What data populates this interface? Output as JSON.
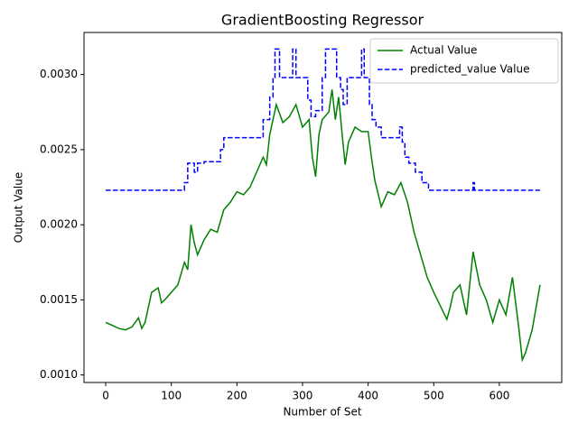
{
  "chart_data": {
    "type": "line",
    "title": "GradientBoosting Regressor",
    "x_label": "Number of Set",
    "y_label": "Output Value",
    "xlim": [
      -33.1,
      695.1
    ],
    "xticks": [
      0,
      100,
      200,
      300,
      400,
      500,
      600
    ],
    "ylim": [
      0.00095,
      0.00328
    ],
    "yticks": [
      {
        "value": 0.001,
        "label": "0.0010"
      },
      {
        "value": 0.0015,
        "label": "0.0015"
      },
      {
        "value": 0.002,
        "label": "0.0020"
      },
      {
        "value": 0.0025,
        "label": "0.0025"
      },
      {
        "value": 0.003,
        "label": "0.0030"
      }
    ],
    "grid": false,
    "legend": "upper right",
    "series": [
      {
        "name": "Actual Value",
        "color": "#008000",
        "dash": "solid",
        "x": [
          0,
          10,
          20,
          30,
          40,
          50,
          55,
          60,
          70,
          80,
          85,
          90,
          100,
          110,
          120,
          125,
          130,
          135,
          140,
          150,
          160,
          170,
          180,
          190,
          200,
          210,
          220,
          230,
          240,
          245,
          250,
          255,
          260,
          270,
          280,
          290,
          300,
          310,
          315,
          320,
          325,
          330,
          340,
          345,
          350,
          355,
          360,
          365,
          370,
          380,
          390,
          400,
          405,
          410,
          420,
          430,
          440,
          450,
          460,
          470,
          480,
          490,
          500,
          520,
          525,
          530,
          540,
          550,
          560,
          570,
          580,
          590,
          600,
          610,
          620,
          630,
          635,
          640,
          650,
          660,
          662
        ],
        "values": [
          0.00135,
          0.00133,
          0.00131,
          0.0013,
          0.00132,
          0.00138,
          0.00131,
          0.00135,
          0.00155,
          0.00158,
          0.00148,
          0.0015,
          0.00155,
          0.0016,
          0.00175,
          0.0017,
          0.002,
          0.00188,
          0.0018,
          0.0019,
          0.00197,
          0.00195,
          0.0021,
          0.00215,
          0.00222,
          0.0022,
          0.00225,
          0.00235,
          0.00245,
          0.0024,
          0.0026,
          0.0027,
          0.0028,
          0.00268,
          0.00272,
          0.0028,
          0.00265,
          0.0027,
          0.00245,
          0.00232,
          0.0026,
          0.0027,
          0.00275,
          0.0029,
          0.0027,
          0.00285,
          0.00262,
          0.0024,
          0.00255,
          0.00265,
          0.00262,
          0.00262,
          0.00245,
          0.0023,
          0.00212,
          0.00222,
          0.0022,
          0.00228,
          0.00215,
          0.00195,
          0.0018,
          0.00165,
          0.00155,
          0.00137,
          0.00145,
          0.00155,
          0.0016,
          0.0014,
          0.00182,
          0.0016,
          0.0015,
          0.00135,
          0.0015,
          0.0014,
          0.00165,
          0.0013,
          0.0011,
          0.00115,
          0.0013,
          0.00155,
          0.0016
        ]
      },
      {
        "name": "predicted_value Value",
        "color": "#0000ff",
        "dash": "dashed",
        "x": [
          0,
          120,
          120,
          125,
          125,
          135,
          135,
          140,
          140,
          150,
          150,
          175,
          175,
          180,
          180,
          240,
          240,
          250,
          250,
          255,
          255,
          258,
          258,
          265,
          265,
          285,
          285,
          290,
          290,
          308,
          308,
          313,
          313,
          320,
          320,
          330,
          330,
          335,
          335,
          352,
          352,
          358,
          358,
          362,
          362,
          368,
          368,
          390,
          390,
          394,
          394,
          402,
          402,
          406,
          406,
          412,
          412,
          420,
          420,
          448,
          448,
          452,
          452,
          456,
          456,
          462,
          462,
          472,
          472,
          482,
          482,
          492,
          492,
          560,
          560,
          562,
          562,
          662
        ],
        "values": [
          0.00223,
          0.00223,
          0.00228,
          0.00228,
          0.00241,
          0.00241,
          0.00235,
          0.00235,
          0.00241,
          0.00241,
          0.00242,
          0.00242,
          0.0025,
          0.0025,
          0.00258,
          0.00258,
          0.0027,
          0.0027,
          0.00285,
          0.00285,
          0.00298,
          0.00298,
          0.00317,
          0.00317,
          0.00298,
          0.00298,
          0.00317,
          0.00317,
          0.00298,
          0.00298,
          0.00283,
          0.00283,
          0.00272,
          0.00272,
          0.00276,
          0.00276,
          0.00298,
          0.00298,
          0.00317,
          0.00317,
          0.00298,
          0.00298,
          0.0029,
          0.0029,
          0.0028,
          0.0028,
          0.00298,
          0.00298,
          0.00317,
          0.00317,
          0.00298,
          0.00298,
          0.0028,
          0.0028,
          0.0027,
          0.0027,
          0.00265,
          0.00265,
          0.00258,
          0.00258,
          0.00265,
          0.00265,
          0.00255,
          0.00255,
          0.00245,
          0.00245,
          0.00241,
          0.00241,
          0.00235,
          0.00235,
          0.00228,
          0.00228,
          0.00223,
          0.00223,
          0.00228,
          0.00228,
          0.00223,
          0.00223
        ]
      }
    ]
  }
}
